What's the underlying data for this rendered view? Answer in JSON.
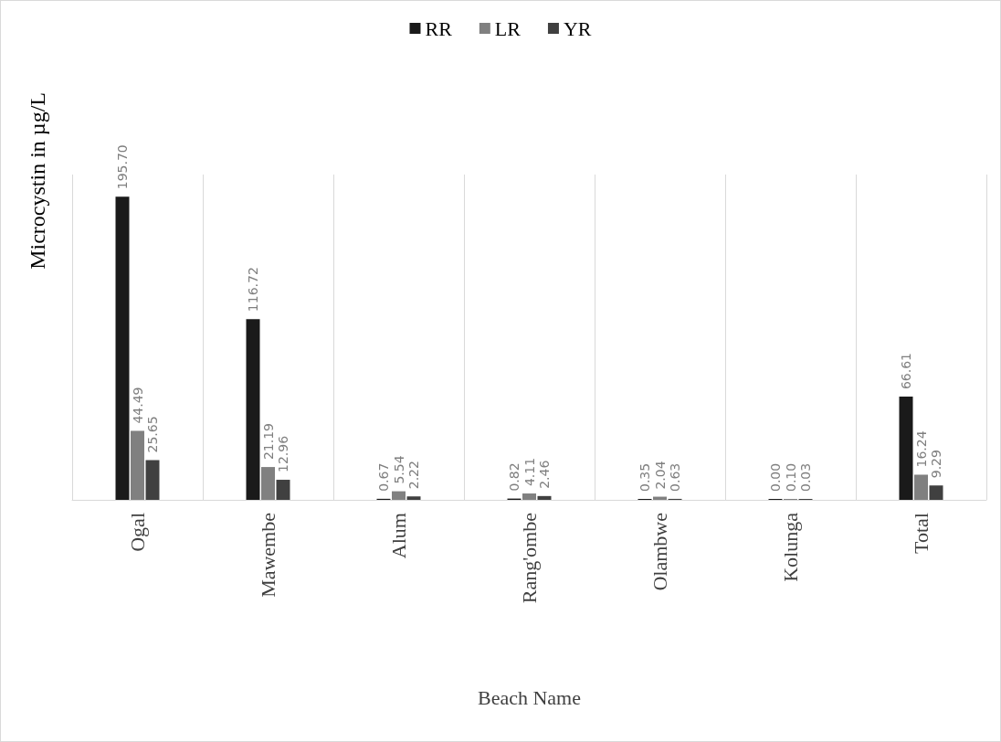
{
  "chart_data": {
    "type": "bar",
    "xlabel": "Beach Name",
    "ylabel": "Microcystin in µg/L",
    "categories": [
      "Ogal",
      "Mawembe",
      "Alum",
      "Rang'ombe",
      "Olambwe",
      "Kolunga",
      "Total"
    ],
    "series": [
      {
        "name": "RR",
        "color": "#1a1a1a",
        "values": [
          195.7,
          116.72,
          0.67,
          0.82,
          0.35,
          0,
          66.61
        ],
        "value_labels": [
          "195.70",
          "116.72",
          "0.67",
          "0.82",
          "0.35",
          "0.00",
          "66.61"
        ]
      },
      {
        "name": "LR",
        "color": "#808080",
        "values": [
          44.49,
          21.19,
          5.54,
          4.11,
          2.04,
          0.1,
          16.24
        ],
        "value_labels": [
          "44.49",
          "21.19",
          "5.54",
          "4.11",
          "2.04",
          "0.10",
          "16.24"
        ]
      },
      {
        "name": "YR",
        "color": "#404040",
        "values": [
          25.65,
          12.96,
          2.22,
          2.46,
          0.63,
          0.03,
          9.29
        ],
        "value_labels": [
          "25.65",
          "12.96",
          "2.22",
          "2.46",
          "0.63",
          "0.03",
          "9.29"
        ]
      }
    ],
    "grid": "x",
    "legend": "top",
    "tick_labels": "x"
  }
}
